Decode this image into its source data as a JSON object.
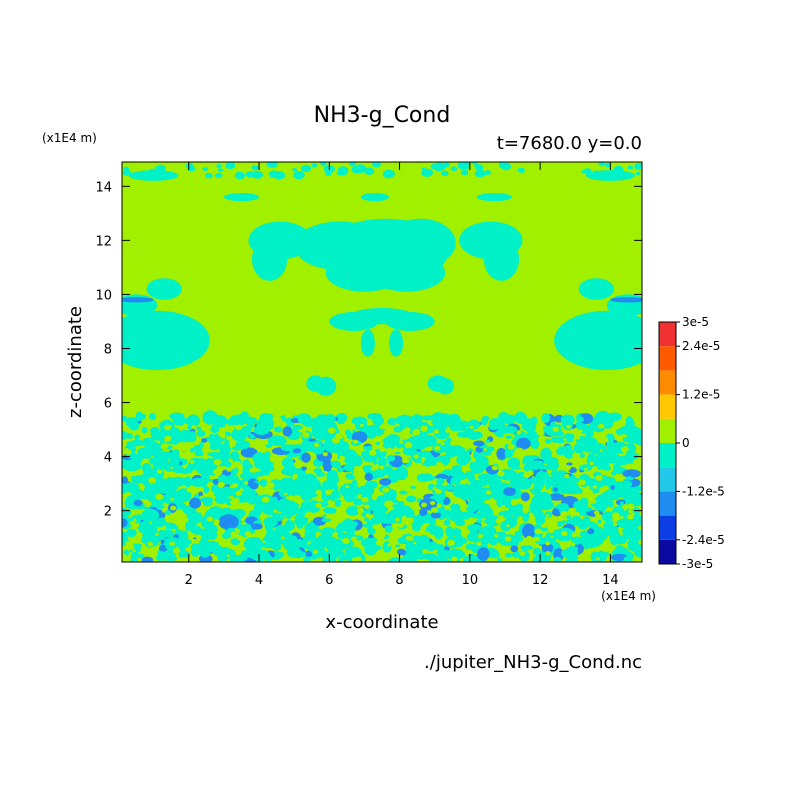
{
  "chart_data": {
    "type": "heatmap",
    "title": "NH3-g_Cond",
    "subtitle": "t=7680.0 y=0.0",
    "xlabel": "x-coordinate",
    "ylabel": "z-coordinate",
    "x_unit": "(x1E4 m)",
    "z_unit": "(x1E4 m)",
    "xlim": [
      0.1,
      14.9
    ],
    "ylim": [
      0.1,
      14.9
    ],
    "x_ticks": [
      2,
      4,
      6,
      8,
      10,
      12,
      14
    ],
    "y_ticks": [
      2,
      4,
      6,
      8,
      10,
      12,
      14
    ],
    "x_tick_labels": [
      "2",
      "4",
      "6",
      "8",
      "10",
      "12",
      "14"
    ],
    "y_tick_labels": [
      "2",
      "4",
      "6",
      "8",
      "10",
      "12",
      "14"
    ],
    "source_file": "./jupiter_NH3-g_Cond.nc",
    "colorbar": {
      "levels": [
        -3e-05,
        -2.4e-05,
        -1.8e-05,
        -1.2e-05,
        -6e-06,
        0,
        6e-06,
        1.2e-05,
        1.8e-05,
        2.4e-05,
        3e-05
      ],
      "tick_values": [
        3e-05,
        2.4e-05,
        1.2e-05,
        0,
        -1.2e-05,
        -2.4e-05,
        -3e-05
      ],
      "tick_labels": [
        "3e-5",
        "2.4e-5",
        "1.2e-5",
        "0",
        "-1.2e-5",
        "-2.4e-5",
        "-3e-5"
      ],
      "colors": [
        "#0a0aa0",
        "#0c3ee6",
        "#1e8cf0",
        "#22c8e8",
        "#00f0c8",
        "#a0f000",
        "#ffc800",
        "#ff8c00",
        "#ff5a00",
        "#f03232"
      ]
    },
    "fields": {
      "background": "#a0f000",
      "negative": "#00f0c8",
      "strong_negative": "#1e8cf0"
    }
  }
}
